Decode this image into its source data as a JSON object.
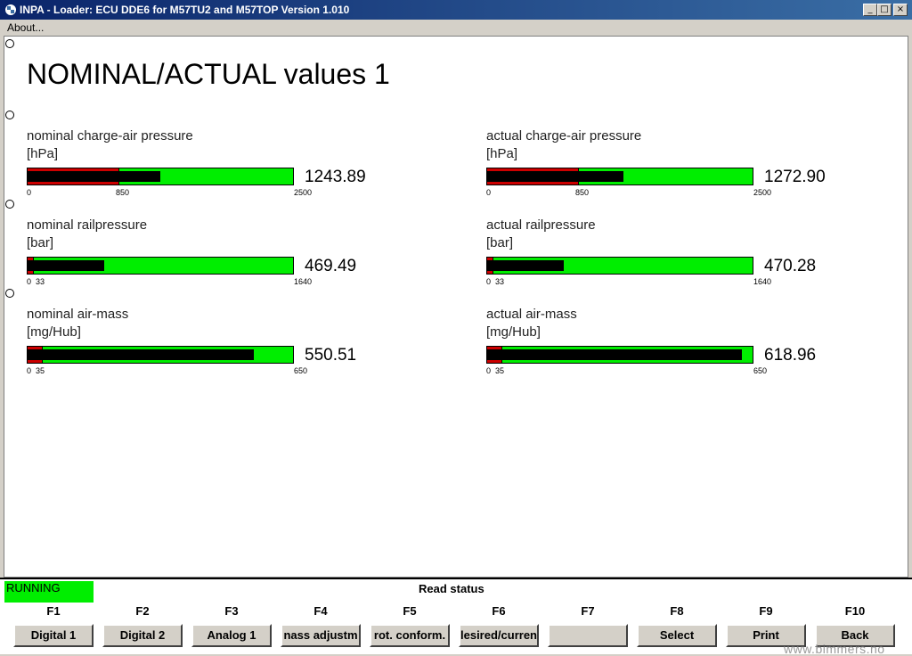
{
  "window": {
    "title": "INPA - Loader:  ECU DDE6 for M57TU2 and M57TOP Version 1.010",
    "min": "_",
    "max": "□",
    "close": "×"
  },
  "menu": {
    "about": "About..."
  },
  "page": {
    "title": "NOMINAL/ACTUAL values 1"
  },
  "gauges": [
    {
      "name": "nominal charge-air pressure",
      "unit": "[hPa]",
      "value_text": "1243.89",
      "value": 1243.89,
      "min": 0,
      "max": 2500,
      "threshold": 850,
      "tick_min": "0",
      "tick_thr": "850",
      "tick_max": "2500"
    },
    {
      "name": "actual charge-air pressure",
      "unit": "[hPa]",
      "value_text": "1272.90",
      "value": 1272.9,
      "min": 0,
      "max": 2500,
      "threshold": 850,
      "tick_min": "0",
      "tick_thr": "850",
      "tick_max": "2500"
    },
    {
      "name": "nominal railpressure",
      "unit": "[bar]",
      "value_text": "469.49",
      "value": 469.49,
      "min": 0,
      "max": 1640,
      "threshold": 33,
      "tick_min": "0",
      "tick_thr": "33",
      "tick_max": "1640"
    },
    {
      "name": "actual railpressure",
      "unit": "[bar]",
      "value_text": "470.28",
      "value": 470.28,
      "min": 0,
      "max": 1640,
      "threshold": 33,
      "tick_min": "0",
      "tick_thr": "33",
      "tick_max": "1640"
    },
    {
      "name": "nominal air-mass",
      "unit": "[mg/Hub]",
      "value_text": "550.51",
      "value": 550.51,
      "min": 0,
      "max": 650,
      "threshold": 35,
      "tick_min": "0",
      "tick_thr": "35",
      "tick_max": "650"
    },
    {
      "name": "actual air-mass",
      "unit": "[mg/Hub]",
      "value_text": "618.96",
      "value": 618.96,
      "min": 0,
      "max": 650,
      "threshold": 35,
      "tick_min": "0",
      "tick_thr": "35",
      "tick_max": "650"
    }
  ],
  "status": {
    "running": "RUNNING",
    "read_status": "Read status"
  },
  "fkeys": [
    {
      "key": "F1",
      "label": "Digital 1"
    },
    {
      "key": "F2",
      "label": "Digital 2"
    },
    {
      "key": "F3",
      "label": "Analog 1"
    },
    {
      "key": "F4",
      "label": "nass adjustm"
    },
    {
      "key": "F5",
      "label": "rot. conform."
    },
    {
      "key": "F6",
      "label": "lesired/curren"
    },
    {
      "key": "F7",
      "label": ""
    },
    {
      "key": "F8",
      "label": "Select"
    },
    {
      "key": "F9",
      "label": "Print"
    },
    {
      "key": "F10",
      "label": "Back"
    }
  ],
  "watermark": "www.bimmers.no",
  "colors": {
    "bar_fill": "#00ee00",
    "bar_value": "#000000",
    "bar_threshold": "#cc0000",
    "titlebar": "#0a246a"
  }
}
